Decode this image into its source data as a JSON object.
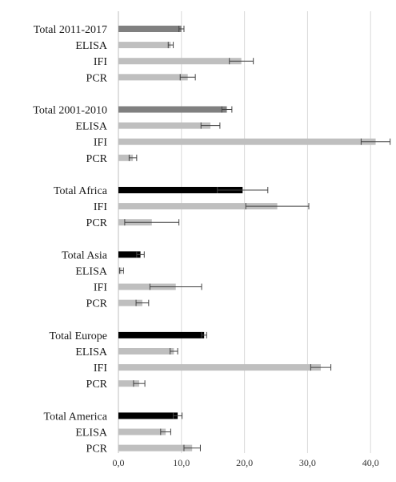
{
  "chart_data": {
    "type": "bar",
    "orientation": "horizontal",
    "title": "",
    "xlabel": "",
    "ylabel": "",
    "xlim": [
      0,
      42
    ],
    "x_ticks": [
      0,
      10,
      20,
      30,
      40
    ],
    "x_tick_labels": [
      "0,0",
      "10,0",
      "20,0",
      "30,0",
      "40,0"
    ],
    "grid": "vertical",
    "legend": "none",
    "colors": {
      "total_period": "#808080",
      "total_region": "#000000",
      "method": "#bfbfbf",
      "error_bar": "#444444"
    },
    "groups": [
      {
        "name": "2011-2017",
        "bars": [
          {
            "label": "Total 2011-2017",
            "value": 10.0,
            "err_low": 0.4,
            "err_high": 0.4,
            "kind": "total_period"
          },
          {
            "label": "ELISA",
            "value": 8.3,
            "err_low": 0.4,
            "err_high": 0.4,
            "kind": "method"
          },
          {
            "label": "IFI",
            "value": 19.5,
            "err_low": 1.9,
            "err_high": 1.9,
            "kind": "method"
          },
          {
            "label": "PCR",
            "value": 11.0,
            "err_low": 1.2,
            "err_high": 1.2,
            "kind": "method"
          }
        ]
      },
      {
        "name": "2001-2010",
        "bars": [
          {
            "label": "Total 2001-2010",
            "value": 17.2,
            "err_low": 0.8,
            "err_high": 0.8,
            "kind": "total_period"
          },
          {
            "label": "ELISA",
            "value": 14.6,
            "err_low": 1.5,
            "err_high": 1.5,
            "kind": "method"
          },
          {
            "label": "IFI",
            "value": 40.8,
            "err_low": 2.3,
            "err_high": 2.3,
            "kind": "method"
          },
          {
            "label": "PCR",
            "value": 2.3,
            "err_low": 0.6,
            "err_high": 0.6,
            "kind": "method"
          }
        ]
      },
      {
        "name": "Africa",
        "bars": [
          {
            "label": "Total Africa",
            "value": 19.7,
            "err_low": 4.0,
            "err_high": 4.0,
            "kind": "total_region"
          },
          {
            "label": "IFI",
            "value": 25.2,
            "err_low": 5.0,
            "err_high": 5.0,
            "kind": "method"
          },
          {
            "label": "PCR",
            "value": 5.3,
            "err_low": 4.3,
            "err_high": 4.3,
            "kind": "method"
          }
        ]
      },
      {
        "name": "Asia",
        "bars": [
          {
            "label": "Total Asia",
            "value": 3.5,
            "err_low": 0.6,
            "err_high": 0.6,
            "kind": "total_region"
          },
          {
            "label": "ELISA",
            "value": 0.5,
            "err_low": 0.3,
            "err_high": 0.3,
            "kind": "method"
          },
          {
            "label": "IFI",
            "value": 9.1,
            "err_low": 4.1,
            "err_high": 4.1,
            "kind": "method"
          },
          {
            "label": "PCR",
            "value": 3.8,
            "err_low": 1.0,
            "err_high": 1.0,
            "kind": "method"
          }
        ]
      },
      {
        "name": "Europe",
        "bars": [
          {
            "label": "Total Europe",
            "value": 13.6,
            "err_low": 0.4,
            "err_high": 0.4,
            "kind": "total_region"
          },
          {
            "label": "ELISA",
            "value": 8.8,
            "err_low": 0.6,
            "err_high": 0.6,
            "kind": "method"
          },
          {
            "label": "IFI",
            "value": 32.1,
            "err_low": 1.6,
            "err_high": 1.6,
            "kind": "method"
          },
          {
            "label": "PCR",
            "value": 3.3,
            "err_low": 0.9,
            "err_high": 0.9,
            "kind": "method"
          }
        ]
      },
      {
        "name": "America",
        "bars": [
          {
            "label": "Total America",
            "value": 9.4,
            "err_low": 0.7,
            "err_high": 0.7,
            "kind": "total_region"
          },
          {
            "label": "ELISA",
            "value": 7.5,
            "err_low": 0.8,
            "err_high": 0.8,
            "kind": "method"
          },
          {
            "label": "PCR",
            "value": 11.7,
            "err_low": 1.3,
            "err_high": 1.3,
            "kind": "method"
          }
        ]
      }
    ]
  }
}
